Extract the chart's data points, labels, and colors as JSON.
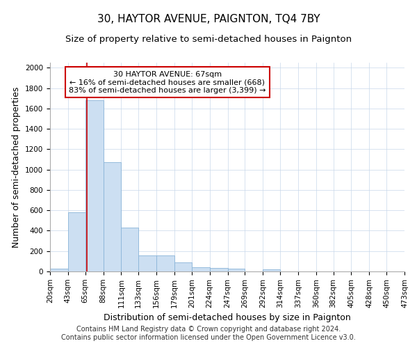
{
  "title": "30, HAYTOR AVENUE, PAIGNTON, TQ4 7BY",
  "subtitle": "Size of property relative to semi-detached houses in Paignton",
  "xlabel": "Distribution of semi-detached houses by size in Paignton",
  "ylabel": "Number of semi-detached properties",
  "footer_line1": "Contains HM Land Registry data © Crown copyright and database right 2024.",
  "footer_line2": "Contains public sector information licensed under the Open Government Licence v3.0.",
  "annotation_line1": "30 HAYTOR AVENUE: 67sqm",
  "annotation_line2": "← 16% of semi-detached houses are smaller (668)",
  "annotation_line3": "83% of semi-detached houses are larger (3,399) →",
  "property_size": 67,
  "bin_edges": [
    20,
    43,
    65,
    88,
    111,
    133,
    156,
    179,
    201,
    224,
    247,
    269,
    292,
    314,
    337,
    360,
    382,
    405,
    428,
    450,
    473
  ],
  "bar_heights": [
    30,
    580,
    1680,
    1070,
    430,
    160,
    155,
    90,
    40,
    35,
    25,
    0,
    20,
    0,
    0,
    0,
    0,
    0,
    0,
    0
  ],
  "bar_color": "#ccdff2",
  "bar_edge_color": "#8ab4d8",
  "redline_color": "#cc0000",
  "annotation_box_edge": "#cc0000",
  "ylim": [
    0,
    2050
  ],
  "yticks": [
    0,
    200,
    400,
    600,
    800,
    1000,
    1200,
    1400,
    1600,
    1800,
    2000
  ],
  "background_color": "#ffffff",
  "grid_color": "#c8d8ea",
  "title_fontsize": 11,
  "subtitle_fontsize": 9.5,
  "axis_label_fontsize": 9,
  "tick_fontsize": 7.5,
  "annotation_fontsize": 8,
  "footer_fontsize": 7
}
